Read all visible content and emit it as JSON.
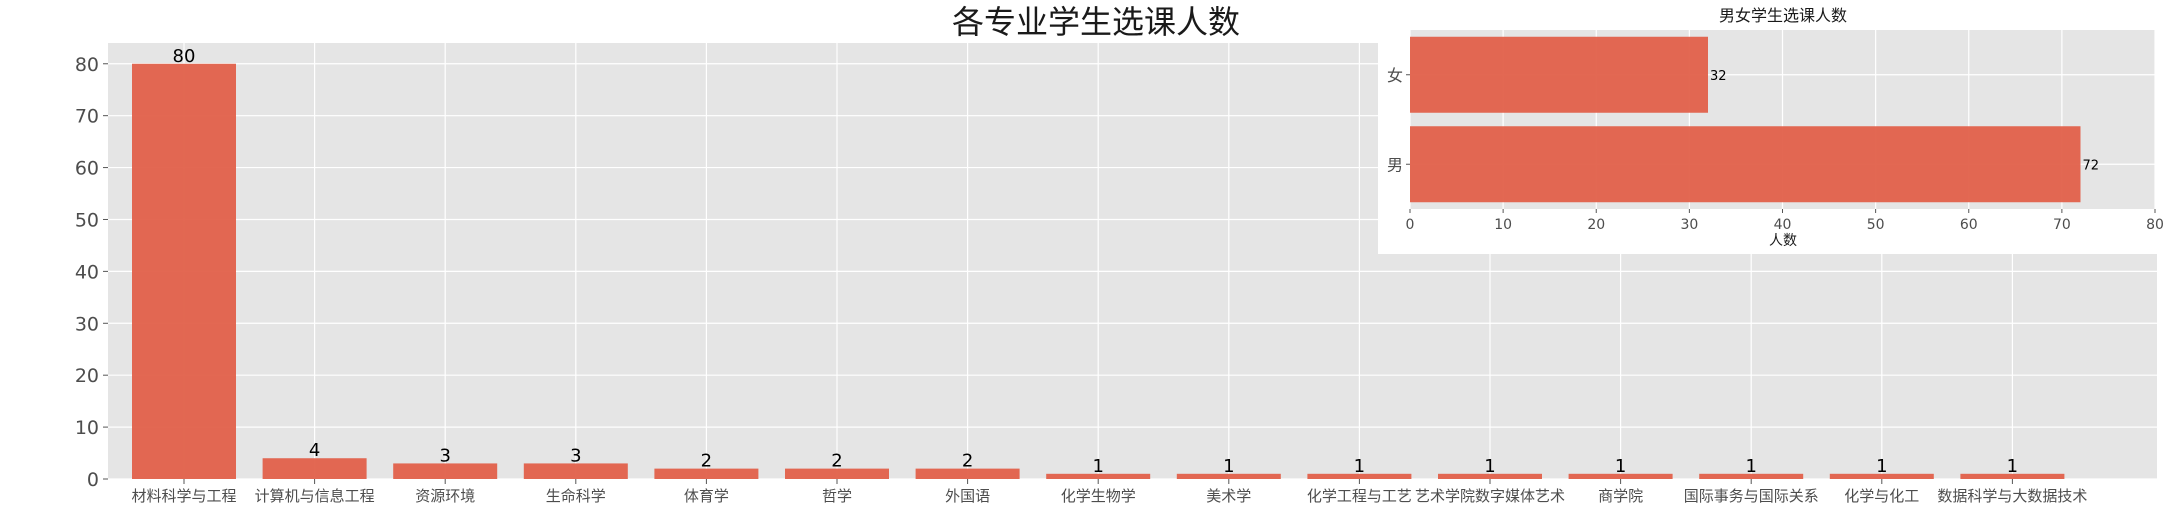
{
  "chart_data": [
    {
      "type": "bar",
      "title": "各专业学生选课人数",
      "xlabel": "",
      "ylabel": "",
      "ylim": [
        0,
        84
      ],
      "yticks": [
        0,
        10,
        20,
        30,
        40,
        50,
        60,
        70,
        80
      ],
      "grid": true,
      "categories": [
        "材料科学与工程",
        "计算机与信息工程",
        "资源环境",
        "生命科学",
        "体育学",
        "哲学",
        "外国语",
        "化学生物学",
        "美术学",
        "化学工程与工艺",
        "艺术学院数字媒体艺术",
        "商学院",
        "国际事务与国际关系",
        "化学与化工",
        "数据科学与大数据技术"
      ],
      "values": [
        80,
        4,
        3,
        3,
        2,
        2,
        2,
        1,
        1,
        1,
        1,
        1,
        1,
        1,
        1
      ],
      "color": "#e2604a"
    },
    {
      "type": "bar",
      "orientation": "horizontal",
      "title": "男女学生选课人数",
      "xlabel": "人数",
      "ylabel": "",
      "xlim": [
        0,
        80
      ],
      "xticks": [
        0,
        10,
        20,
        30,
        40,
        50,
        60,
        70,
        80
      ],
      "grid": true,
      "categories": [
        "男",
        "女"
      ],
      "values": [
        72,
        32
      ],
      "color": "#e2604a"
    }
  ]
}
